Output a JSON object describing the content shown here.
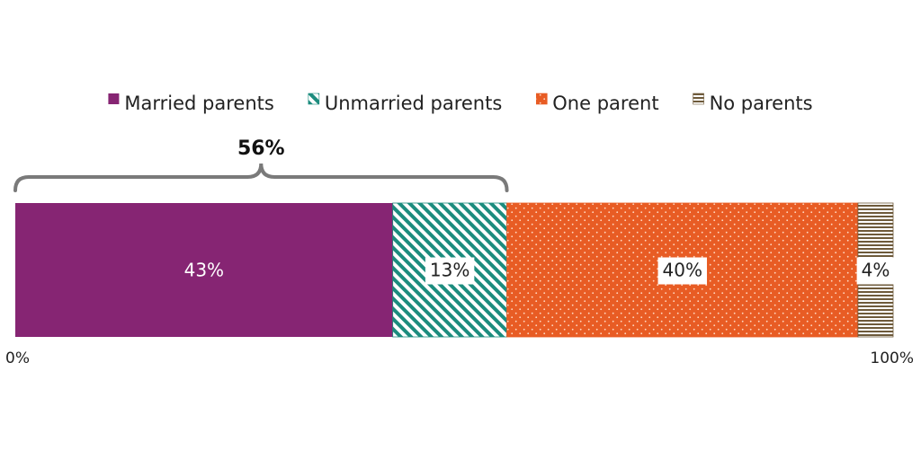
{
  "chart_data": {
    "type": "bar",
    "orientation": "horizontal",
    "stacked": true,
    "categories": [
      ""
    ],
    "series": [
      {
        "name": "Married parents",
        "values": [
          43
        ],
        "label": "43%",
        "color": "#862573",
        "pattern": "solid"
      },
      {
        "name": "Unmarried parents",
        "values": [
          13
        ],
        "label": "13%",
        "color": "#1c8c7e",
        "pattern": "diagonal-stripes"
      },
      {
        "name": "One parent",
        "values": [
          40
        ],
        "label": "40%",
        "color": "#e85c24",
        "pattern": "dots"
      },
      {
        "name": "No parents",
        "values": [
          4
        ],
        "label": "4%",
        "color": "#6e5a3a",
        "pattern": "horizontal-stripes"
      }
    ],
    "xlim": [
      0,
      100
    ],
    "tick_labels": [
      "0%",
      "100%"
    ],
    "bracket": {
      "label": "56%",
      "from": 0,
      "to": 56
    },
    "legend_position": "top-center",
    "grid": false
  }
}
